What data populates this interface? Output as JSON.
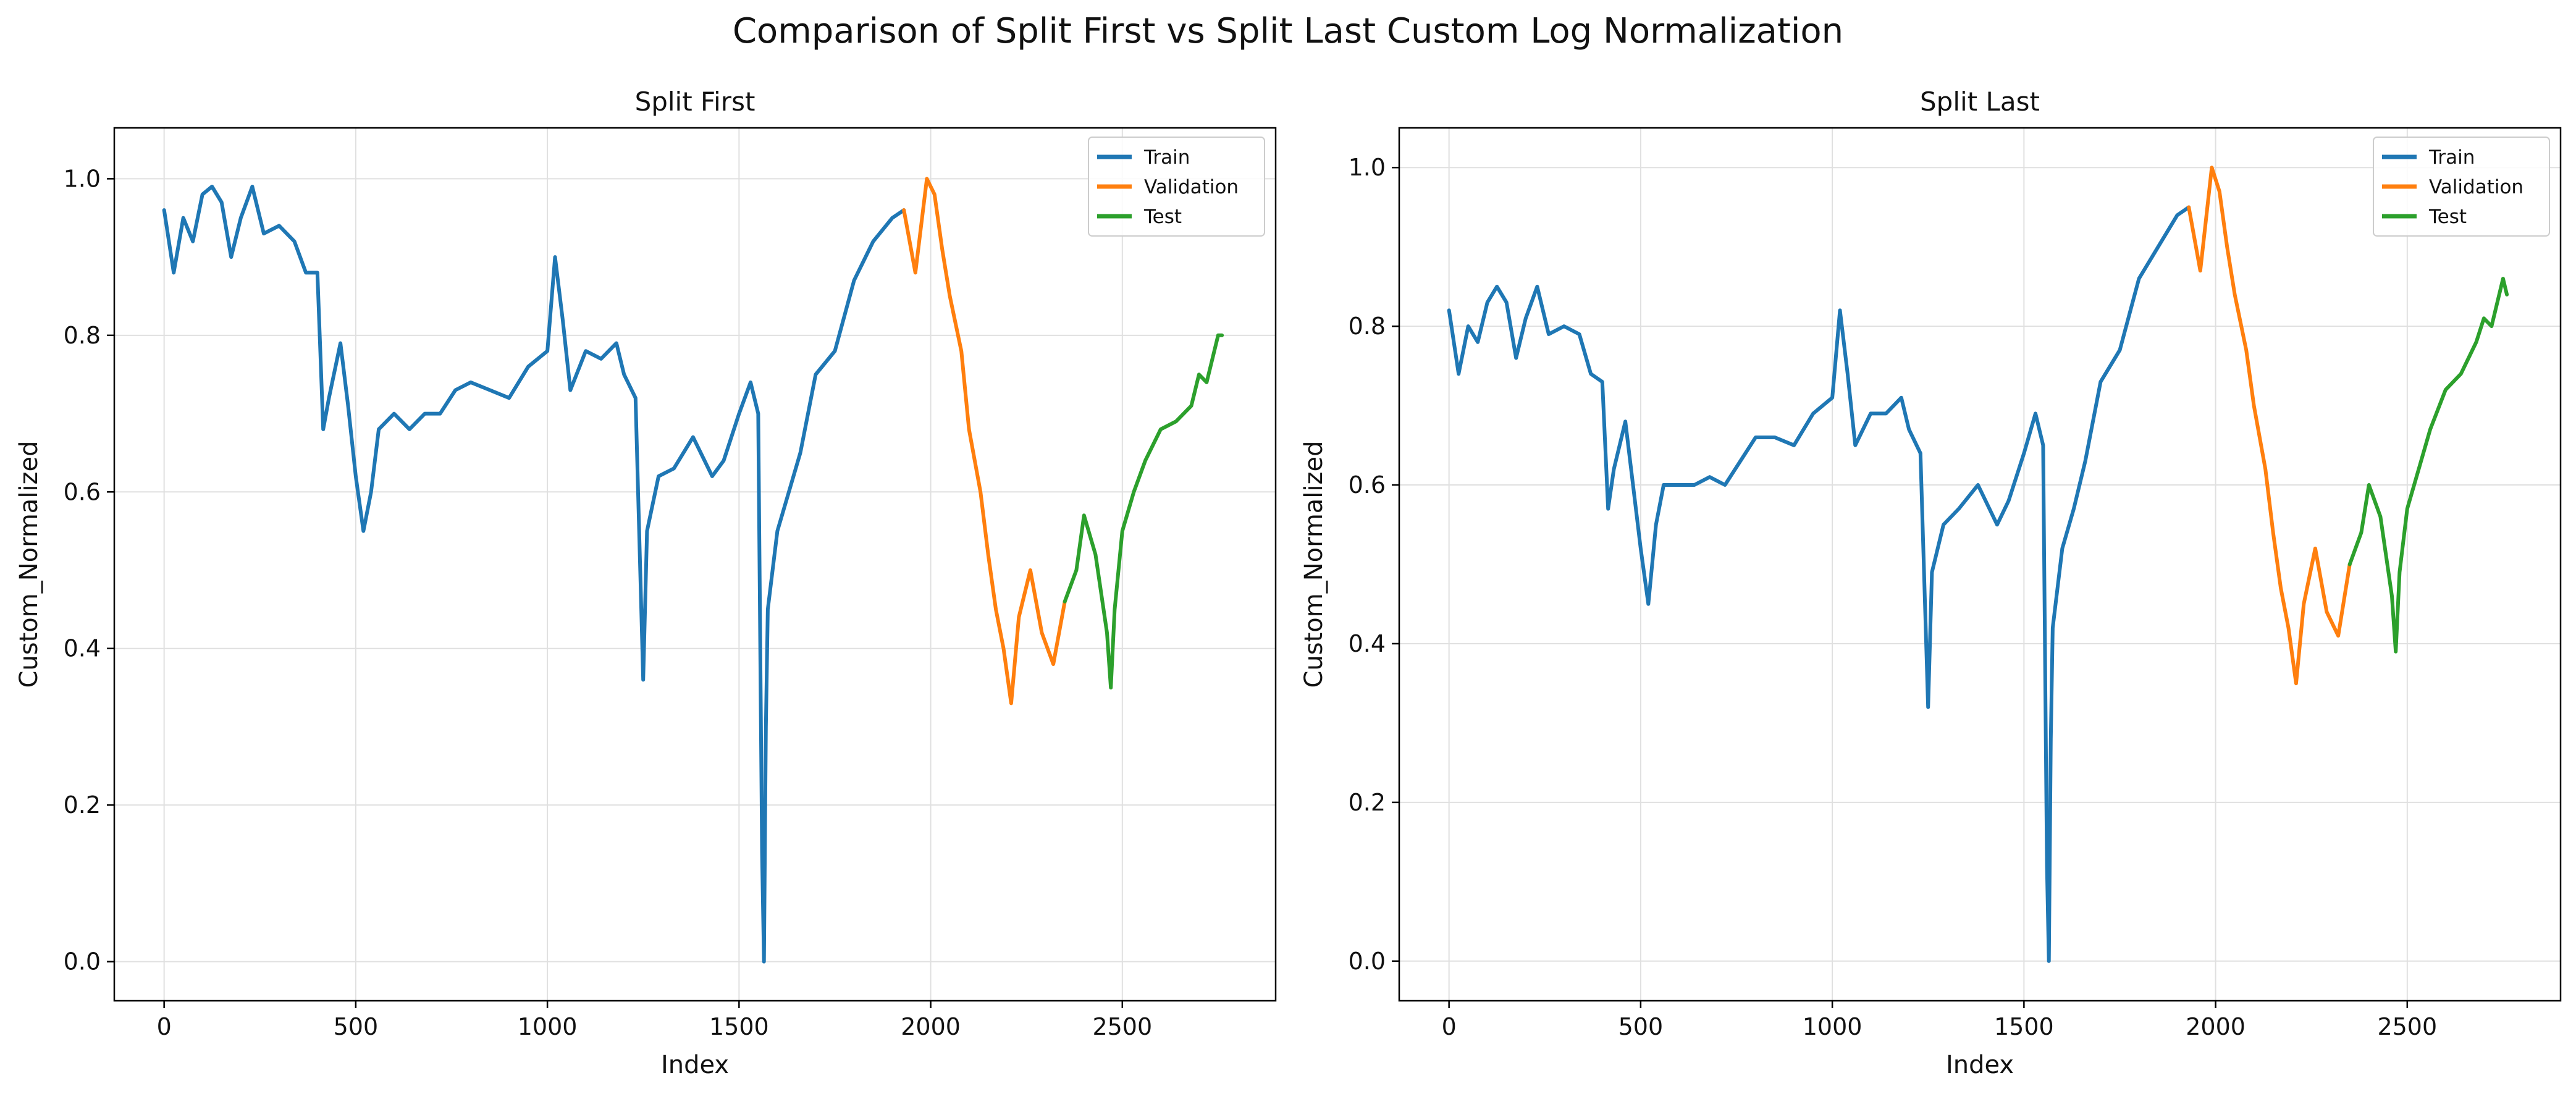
{
  "figure": {
    "suptitle": "Comparison of Split First vs Split Last Custom Log Normalization"
  },
  "chart_data": [
    {
      "type": "line",
      "title": "Split First",
      "xlabel": "Index",
      "ylabel": "Custom_Normalized",
      "xlim": [
        -130,
        2900
      ],
      "ylim": [
        -0.05,
        1.065
      ],
      "xticks": [
        0,
        500,
        1000,
        1500,
        2000,
        2500
      ],
      "yticks": [
        0.0,
        0.2,
        0.4,
        0.6,
        0.8,
        1.0
      ],
      "grid": true,
      "legend_position": "top-right",
      "series": [
        {
          "name": "Train",
          "color": "#1f77b4",
          "x": [
            0,
            25,
            50,
            75,
            100,
            125,
            150,
            175,
            200,
            230,
            260,
            300,
            340,
            370,
            400,
            415,
            430,
            460,
            480,
            500,
            520,
            540,
            560,
            600,
            640,
            680,
            720,
            760,
            800,
            850,
            900,
            950,
            1000,
            1020,
            1040,
            1060,
            1100,
            1140,
            1180,
            1200,
            1230,
            1250,
            1260,
            1290,
            1330,
            1380,
            1430,
            1460,
            1500,
            1530,
            1550,
            1560,
            1565,
            1570,
            1575,
            1600,
            1630,
            1660,
            1700,
            1750,
            1800,
            1850,
            1900,
            1930
          ],
          "y": [
            0.96,
            0.88,
            0.95,
            0.92,
            0.98,
            0.99,
            0.97,
            0.9,
            0.95,
            0.99,
            0.93,
            0.94,
            0.92,
            0.88,
            0.88,
            0.68,
            0.72,
            0.79,
            0.71,
            0.62,
            0.55,
            0.6,
            0.68,
            0.7,
            0.68,
            0.7,
            0.7,
            0.73,
            0.74,
            0.73,
            0.72,
            0.76,
            0.78,
            0.9,
            0.82,
            0.73,
            0.78,
            0.77,
            0.79,
            0.75,
            0.72,
            0.36,
            0.55,
            0.62,
            0.63,
            0.67,
            0.62,
            0.64,
            0.7,
            0.74,
            0.7,
            0.14,
            0.0,
            0.3,
            0.45,
            0.55,
            0.6,
            0.65,
            0.75,
            0.78,
            0.87,
            0.92,
            0.95,
            0.96
          ]
        },
        {
          "name": "Validation",
          "color": "#ff7f0e",
          "x": [
            1930,
            1960,
            1990,
            2010,
            2030,
            2050,
            2080,
            2100,
            2130,
            2150,
            2170,
            2190,
            2210,
            2230,
            2260,
            2290,
            2320,
            2350
          ],
          "y": [
            0.96,
            0.88,
            1.0,
            0.98,
            0.91,
            0.85,
            0.78,
            0.68,
            0.6,
            0.52,
            0.45,
            0.4,
            0.33,
            0.44,
            0.5,
            0.42,
            0.38,
            0.46
          ]
        },
        {
          "name": "Test",
          "color": "#2ca02c",
          "x": [
            2350,
            2380,
            2400,
            2430,
            2460,
            2470,
            2480,
            2500,
            2530,
            2560,
            2600,
            2640,
            2680,
            2700,
            2720,
            2750,
            2760
          ],
          "y": [
            0.46,
            0.5,
            0.57,
            0.52,
            0.42,
            0.35,
            0.45,
            0.55,
            0.6,
            0.64,
            0.68,
            0.69,
            0.71,
            0.75,
            0.74,
            0.8,
            0.8
          ]
        }
      ]
    },
    {
      "type": "line",
      "title": "Split Last",
      "xlabel": "Index",
      "ylabel": "Custom_Normalized",
      "xlim": [
        -130,
        2900
      ],
      "ylim": [
        -0.05,
        1.05
      ],
      "xticks": [
        0,
        500,
        1000,
        1500,
        2000,
        2500
      ],
      "yticks": [
        0.0,
        0.2,
        0.4,
        0.6,
        0.8,
        1.0
      ],
      "grid": true,
      "legend_position": "top-right",
      "series": [
        {
          "name": "Train",
          "color": "#1f77b4",
          "x": [
            0,
            25,
            50,
            75,
            100,
            125,
            150,
            175,
            200,
            230,
            260,
            300,
            340,
            370,
            400,
            415,
            430,
            460,
            480,
            500,
            520,
            540,
            560,
            600,
            640,
            680,
            720,
            760,
            800,
            850,
            900,
            950,
            1000,
            1020,
            1040,
            1060,
            1100,
            1140,
            1180,
            1200,
            1230,
            1250,
            1260,
            1290,
            1330,
            1380,
            1430,
            1460,
            1500,
            1530,
            1550,
            1560,
            1565,
            1570,
            1575,
            1600,
            1630,
            1660,
            1700,
            1750,
            1800,
            1850,
            1900,
            1930
          ],
          "y": [
            0.82,
            0.74,
            0.8,
            0.78,
            0.83,
            0.85,
            0.83,
            0.76,
            0.81,
            0.85,
            0.79,
            0.8,
            0.79,
            0.74,
            0.73,
            0.57,
            0.62,
            0.68,
            0.6,
            0.52,
            0.45,
            0.55,
            0.6,
            0.6,
            0.6,
            0.61,
            0.6,
            0.63,
            0.66,
            0.66,
            0.65,
            0.69,
            0.71,
            0.82,
            0.74,
            0.65,
            0.69,
            0.69,
            0.71,
            0.67,
            0.64,
            0.32,
            0.49,
            0.55,
            0.57,
            0.6,
            0.55,
            0.58,
            0.64,
            0.69,
            0.65,
            0.12,
            0.0,
            0.28,
            0.42,
            0.52,
            0.57,
            0.63,
            0.73,
            0.77,
            0.86,
            0.9,
            0.94,
            0.95
          ]
        },
        {
          "name": "Validation",
          "color": "#ff7f0e",
          "x": [
            1930,
            1960,
            1990,
            2010,
            2030,
            2050,
            2080,
            2100,
            2130,
            2150,
            2170,
            2190,
            2210,
            2230,
            2260,
            2290,
            2320,
            2350
          ],
          "y": [
            0.95,
            0.87,
            1.0,
            0.97,
            0.9,
            0.84,
            0.77,
            0.7,
            0.62,
            0.54,
            0.47,
            0.42,
            0.35,
            0.45,
            0.52,
            0.44,
            0.41,
            0.5
          ]
        },
        {
          "name": "Test",
          "color": "#2ca02c",
          "x": [
            2350,
            2380,
            2400,
            2430,
            2460,
            2470,
            2480,
            2500,
            2530,
            2560,
            2600,
            2640,
            2680,
            2700,
            2720,
            2750,
            2760
          ],
          "y": [
            0.5,
            0.54,
            0.6,
            0.56,
            0.46,
            0.39,
            0.49,
            0.57,
            0.62,
            0.67,
            0.72,
            0.74,
            0.78,
            0.81,
            0.8,
            0.86,
            0.84
          ]
        }
      ]
    }
  ]
}
